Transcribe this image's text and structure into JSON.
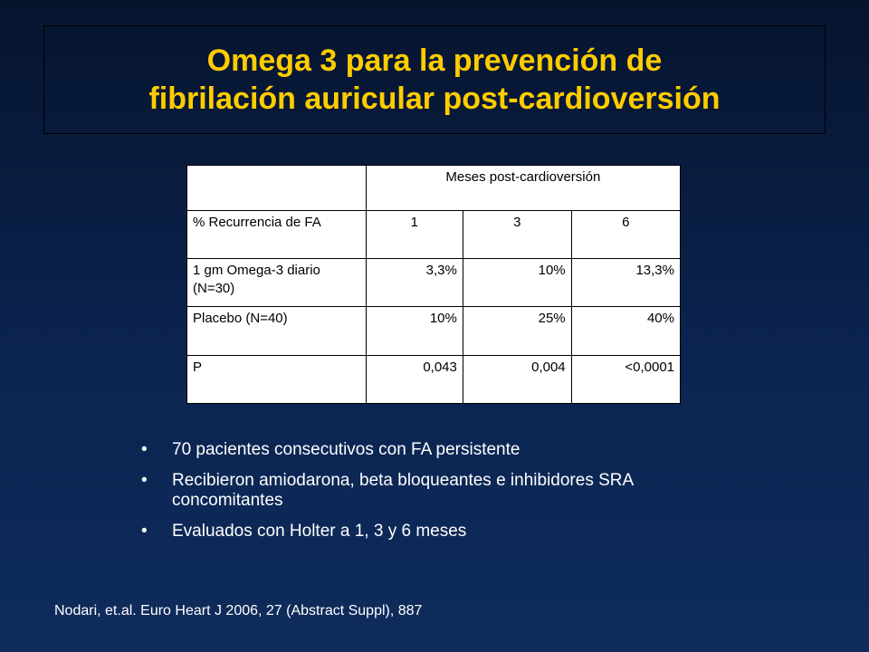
{
  "slide": {
    "title_line1": "Omega 3 para la prevención de",
    "title_line2": "fibrilación auricular post-cardioversión"
  },
  "table": {
    "header": "Meses post-cardioversión",
    "rows": [
      {
        "label": "% Recurrencia de FA",
        "values": [
          "1",
          "3",
          "6"
        ]
      },
      {
        "label": "1 gm Omega-3 diario (N=30)",
        "values": [
          "3,3%",
          "10%",
          "13,3%"
        ]
      },
      {
        "label": "Placebo (N=40)",
        "values": [
          "10%",
          "25%",
          "40%"
        ]
      },
      {
        "label": "P",
        "values": [
          "0,043",
          "0,004",
          "<0,0001"
        ]
      }
    ]
  },
  "bullets": [
    "70 pacientes consecutivos con FA persistente",
    "Recibieron amiodarona, beta bloqueantes e inhibidores SRA concomitantes",
    "Evaluados con Holter a 1, 3 y 6 meses"
  ],
  "bullet_symbol": "•",
  "citation": "Nodari, et.al. Euro Heart J 2006, 27 (Abstract Suppl), 887",
  "colors": {
    "title": "#ffcc00",
    "background": "#0b2450",
    "text": "#ffffff"
  }
}
